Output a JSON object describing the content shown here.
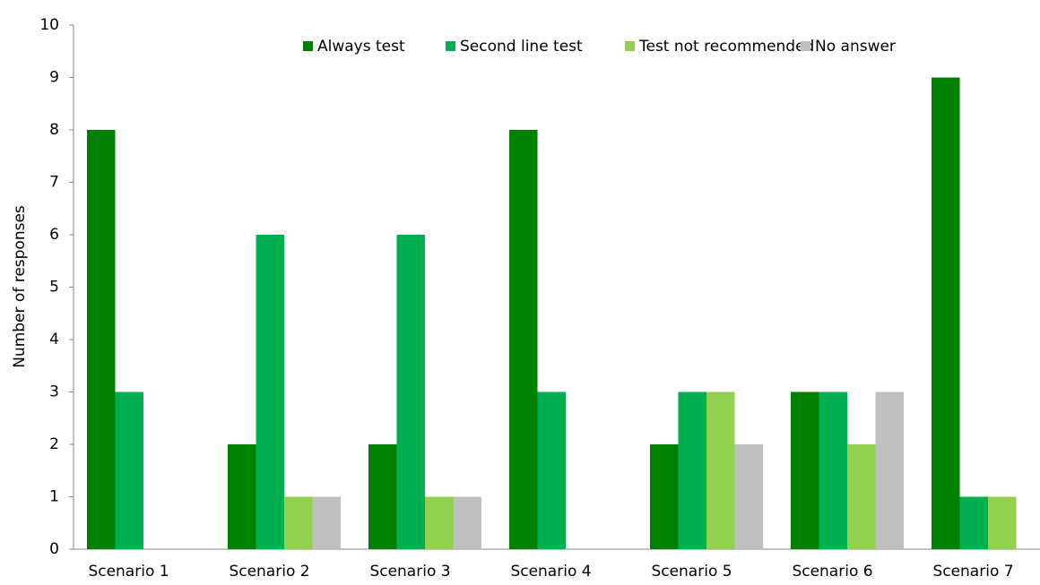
{
  "chart_data": {
    "type": "bar",
    "y_label": "Number of responses",
    "categories": [
      "Scenario 1",
      "Scenario 2",
      "Scenario 3",
      "Scenario 4",
      "Scenario 5",
      "Scenario 6",
      "Scenario 7"
    ],
    "series": [
      {
        "name": "Always test",
        "color": "#008000",
        "values": [
          8,
          2,
          2,
          8,
          2,
          3,
          9
        ]
      },
      {
        "name": "Second line test",
        "color": "#00b050",
        "values": [
          3,
          6,
          6,
          3,
          3,
          3,
          1
        ]
      },
      {
        "name": "Test not recommended",
        "color": "#92d050",
        "values": [
          0,
          1,
          1,
          0,
          3,
          2,
          1
        ]
      },
      {
        "name": "No answer",
        "color": "#bfbfbf",
        "values": [
          0,
          1,
          1,
          0,
          2,
          3,
          0
        ]
      }
    ],
    "ylim": [
      0,
      10
    ],
    "yticks": [
      0,
      1,
      2,
      3,
      4,
      5,
      6,
      7,
      8,
      9,
      10
    ],
    "legend": "top"
  }
}
